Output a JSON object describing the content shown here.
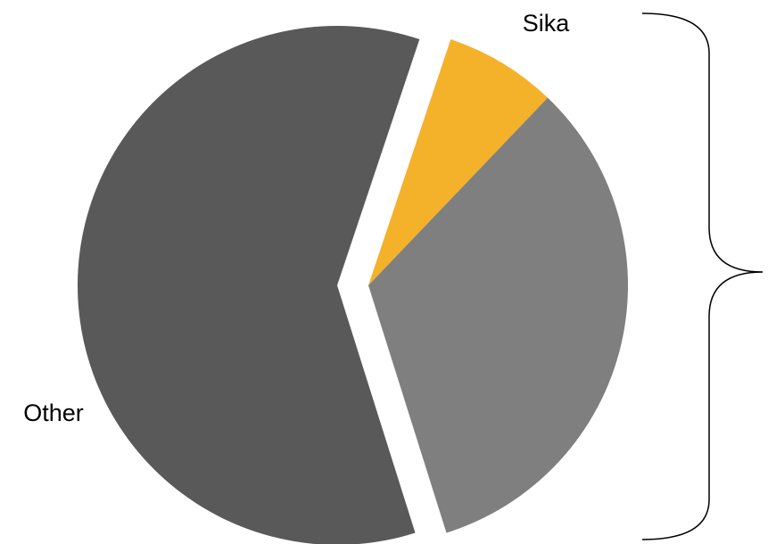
{
  "chart_data": {
    "type": "pie",
    "categories": [
      "Sika",
      null,
      "Other"
    ],
    "values": [
      7,
      33,
      60
    ],
    "colors": [
      "#f4b12a",
      "#7f7f7f",
      "#595959"
    ]
  }
}
